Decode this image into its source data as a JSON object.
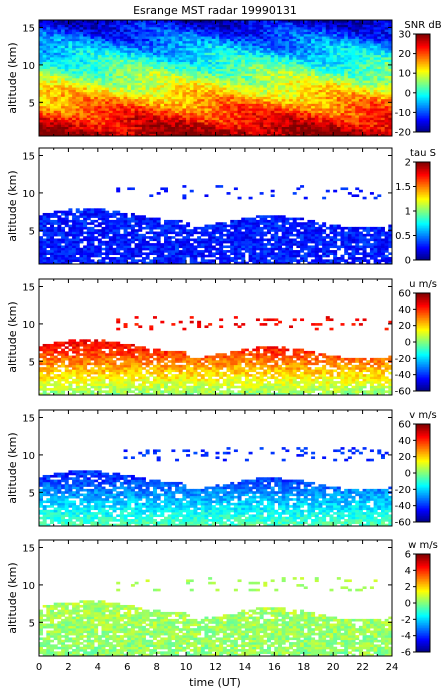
{
  "figure": {
    "title": "Esrange MST radar 19990131",
    "xlabel": "time (UT)",
    "xticks": [
      "0",
      "2",
      "4",
      "6",
      "8",
      "10",
      "12",
      "14",
      "16",
      "18",
      "20",
      "22",
      "24"
    ]
  },
  "chart_data": [
    {
      "type": "heatmap",
      "title": "Esrange MST radar 19990131",
      "xlabel": "time (UT)",
      "ylabel": "altitude (km)",
      "xlim": [
        0,
        24
      ],
      "ylim": [
        0.5,
        16
      ],
      "yticks": [
        5,
        10,
        15
      ],
      "colorbar": {
        "label": "SNR dB",
        "range": [
          -20,
          30
        ],
        "ticks": [
          30,
          20,
          10,
          0,
          -10,
          -20
        ]
      },
      "field": "SNR",
      "coverage_top_km": 16,
      "pattern": "strong echo (20-30 dB) below 4 km, decreasing to -15 dB near 15 km"
    },
    {
      "type": "heatmap",
      "xlabel": "time (UT)",
      "ylabel": "altitude (km)",
      "xlim": [
        0,
        24
      ],
      "ylim": [
        0.5,
        16
      ],
      "yticks": [
        5,
        10,
        15
      ],
      "colorbar": {
        "label": "tau S",
        "range": [
          0,
          2
        ],
        "ticks": [
          2,
          1.5,
          1,
          0.5,
          0
        ]
      },
      "field": "tau",
      "coverage_top_km": 7,
      "upper_echo_layer_km": [
        9,
        11
      ],
      "typical_value_low": 0.3
    },
    {
      "type": "heatmap",
      "xlabel": "time (UT)",
      "ylabel": "altitude (km)",
      "xlim": [
        0,
        24
      ],
      "ylim": [
        0.5,
        16
      ],
      "yticks": [
        5,
        10,
        15
      ],
      "colorbar": {
        "label": "u m/s",
        "range": [
          -60,
          60
        ],
        "ticks": [
          60,
          40,
          20,
          0,
          -20,
          -40,
          -60
        ]
      },
      "field": "u",
      "coverage_top_km": 7,
      "upper_echo_layer_km": [
        9,
        11
      ],
      "typical_value_low": 5,
      "typical_value_high": 45
    },
    {
      "type": "heatmap",
      "xlabel": "time (UT)",
      "ylabel": "altitude (km)",
      "xlim": [
        0,
        24
      ],
      "ylim": [
        0.5,
        16
      ],
      "yticks": [
        5,
        10,
        15
      ],
      "colorbar": {
        "label": "v m/s",
        "range": [
          -60,
          60
        ],
        "ticks": [
          60,
          40,
          20,
          0,
          -20,
          -40,
          -60
        ]
      },
      "field": "v",
      "coverage_top_km": 7,
      "upper_echo_layer_km": [
        9,
        11
      ],
      "typical_value_low": -8,
      "typical_value_high": -40
    },
    {
      "type": "heatmap",
      "xlabel": "time (UT)",
      "ylabel": "altitude (km)",
      "xlim": [
        0,
        24
      ],
      "ylim": [
        0.5,
        16
      ],
      "yticks": [
        5,
        10,
        15
      ],
      "colorbar": {
        "label": "w m/s",
        "range": [
          -6,
          6
        ],
        "ticks": [
          6,
          4,
          2,
          0,
          -2,
          -4,
          -6
        ]
      },
      "field": "w",
      "coverage_top_km": 7,
      "upper_echo_layer_km": [
        9,
        11
      ],
      "typical_value_low": 0.2,
      "typical_value_high": 0.5
    }
  ]
}
